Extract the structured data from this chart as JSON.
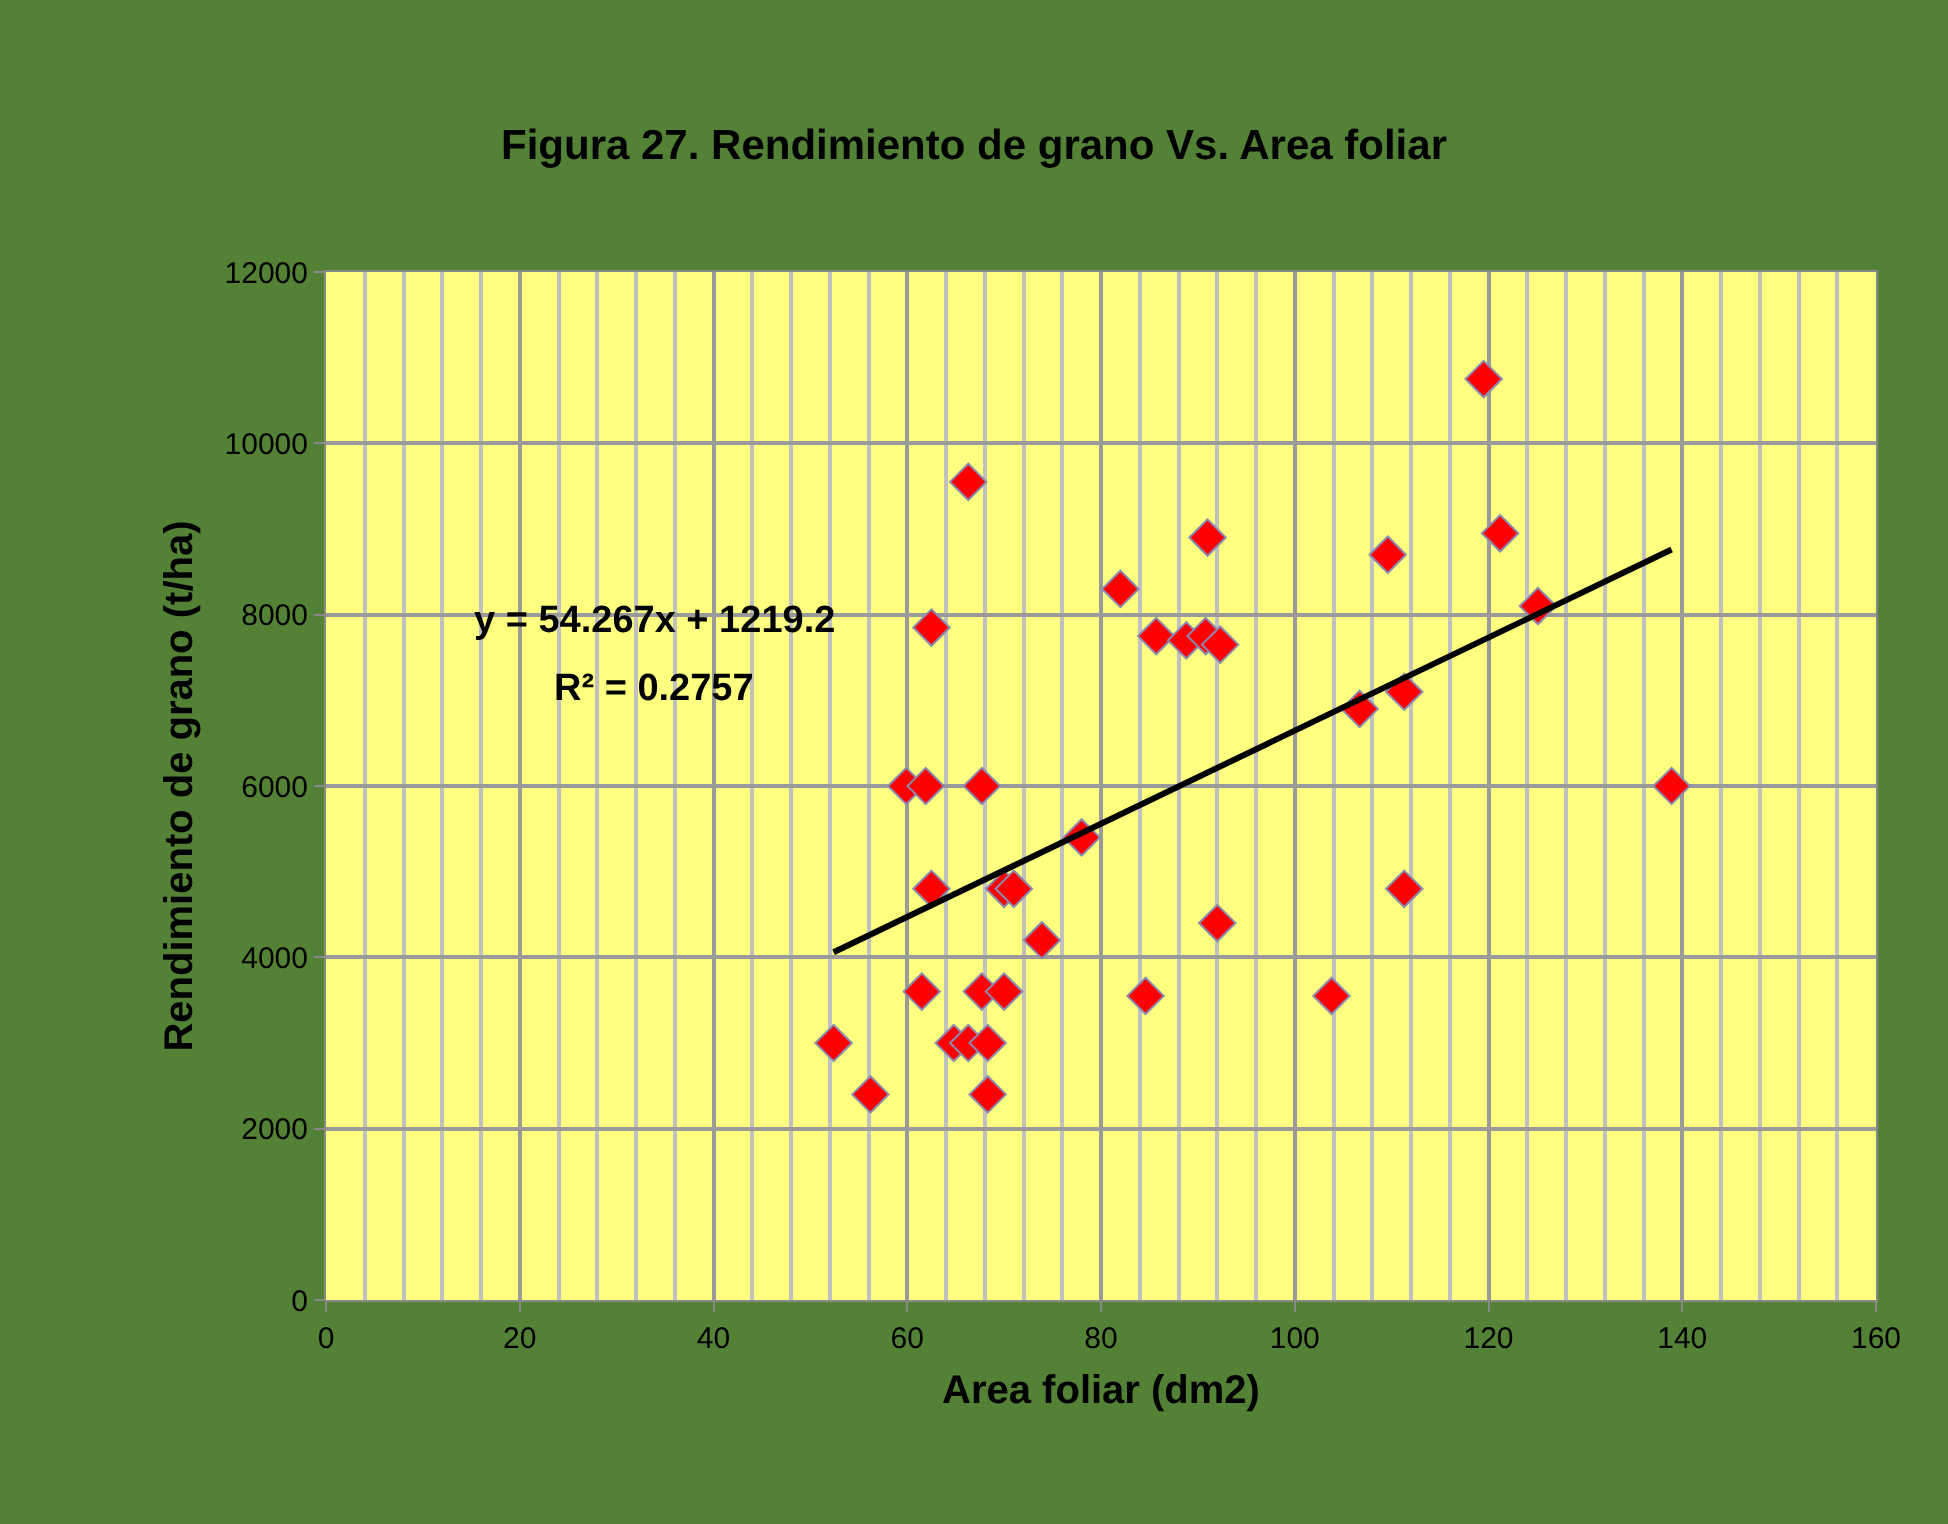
{
  "chart_data": {
    "type": "scatter",
    "title": "Figura 27. Rendimiento de grano Vs. Area foliar",
    "xlabel": "Area foliar (dm2)",
    "ylabel": "Rendimiento de grano (t/ha)",
    "annotations": [
      "y = 54.267x + 1219.2",
      "R² = 0.2757"
    ],
    "series": [
      {
        "type": "scatter",
        "color": "#ff0000",
        "marker": "diamond",
        "x": [
          52.4,
          56.2,
          59.9,
          61.9,
          61.5,
          62.5,
          62.5,
          64.8,
          66.3,
          66.3,
          67.7,
          67.7,
          68.3,
          68.3,
          70,
          70,
          71,
          73.9,
          78,
          82,
          84.6,
          85.7,
          88.8,
          90.8,
          91,
          92.3,
          92,
          103.8,
          106.7,
          109.6,
          111.3,
          111.3,
          119.5,
          121.2,
          125.1,
          138.9
        ],
        "values": [
          3000,
          2400,
          6000,
          6000,
          3600,
          4800,
          7850,
          3000,
          3000,
          9550,
          6000,
          3600,
          3000,
          2400,
          4800,
          3600,
          4800,
          4200,
          5400,
          8300,
          3550,
          7750,
          7700,
          7750,
          8900,
          7650,
          4400,
          3550,
          6900,
          8700,
          7100,
          4800,
          10750,
          8950,
          8100,
          6000
        ]
      },
      {
        "type": "line",
        "color": "#000000",
        "marker": "none",
        "line_style": "solid",
        "x": [
          52.4,
          138.9
        ],
        "values": [
          4060,
          8760
        ]
      }
    ],
    "xlim": [
      0,
      160
    ],
    "xticks": [
      0,
      20,
      40,
      60,
      80,
      100,
      120,
      140,
      160
    ],
    "ylim": [
      0,
      12000
    ],
    "yticks": [
      0,
      2000,
      4000,
      6000,
      8000,
      10000,
      12000
    ],
    "grid": true
  }
}
